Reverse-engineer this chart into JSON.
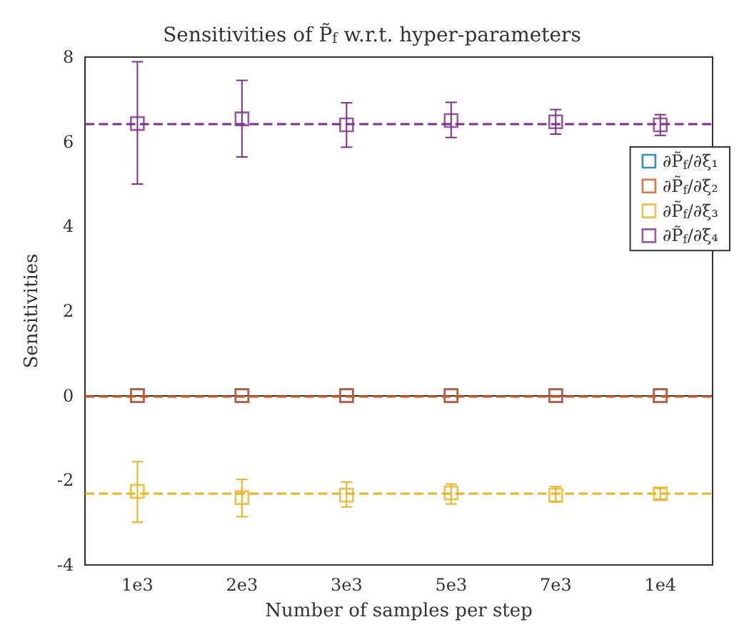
{
  "chart_data": {
    "type": "scatter",
    "title": "Sensitivities of P̃$_{f}$ w.r.t. hyper-parameters",
    "xlabel": "Number of samples per step",
    "ylabel": "Sensitivities",
    "categories": [
      "1e3",
      "2e3",
      "3e3",
      "5e3",
      "7e3",
      "1e4"
    ],
    "series": [
      {
        "name": "∂P̃$_{f}$/∂ξ₁",
        "color": "#0072bd",
        "values": [
          0,
          0,
          0,
          0,
          0,
          0
        ]
      },
      {
        "name": "∂P̃$_{f}$/∂ξ₂",
        "color": "#d95319",
        "values": [
          0,
          0,
          0,
          0,
          0,
          0
        ]
      },
      {
        "name": "∂P̃$_{f}$/∂ξ₃",
        "color": "#edb120",
        "values": [
          -2.26,
          -2.41,
          -2.35,
          -2.3,
          -2.35,
          -2.32
        ],
        "errors": [
          [
            -2.99,
            -1.56
          ],
          [
            -2.86,
            -1.98
          ],
          [
            -2.63,
            -2.04
          ],
          [
            -2.56,
            -2.09
          ],
          [
            -2.51,
            -2.15
          ],
          [
            -2.45,
            -2.19
          ]
        ]
      },
      {
        "name": "∂P̃$_{f}$/∂ξ₄",
        "color": "#7e2f8e",
        "values": [
          6.43,
          6.54,
          6.4,
          6.5,
          6.47,
          6.4
        ],
        "errors": [
          [
            5.0,
            7.89
          ],
          [
            5.64,
            7.45
          ],
          [
            5.87,
            6.92
          ],
          [
            6.1,
            6.93
          ],
          [
            6.18,
            6.76
          ],
          [
            6.15,
            6.64
          ]
        ]
      }
    ],
    "ref_lines": [
      {
        "axis": "y",
        "value": 0,
        "color": "#d95319",
        "line_style": "dashed"
      },
      {
        "axis": "y",
        "value": -2.32,
        "color": "#edb120",
        "line_style": "dashed"
      },
      {
        "axis": "y",
        "value": 6.42,
        "color": "#7e2f8e",
        "line_style": "dashed"
      }
    ],
    "ylim": [
      -4,
      8
    ],
    "yticks": [
      -4,
      -2,
      0,
      2,
      4,
      6,
      8
    ],
    "grid": false,
    "legend": "right",
    "marker": "square"
  }
}
